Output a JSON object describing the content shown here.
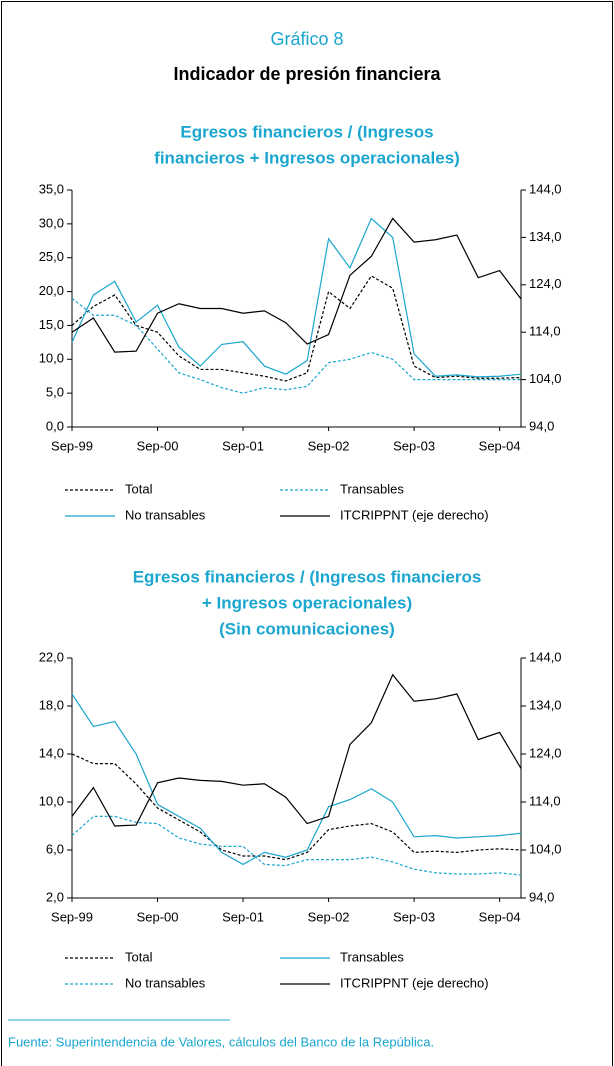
{
  "header": {
    "number": "Gráfico 8",
    "title": "Indicador de presión financiera"
  },
  "source": "Fuente: Superintendencia de Valores, cálculos del Banco de la República.",
  "chart_data": [
    {
      "type": "line",
      "title": [
        "Egresos financieros / (Ingresos",
        "financieros + Ingresos operacionales)"
      ],
      "categories": [
        "Sep-99",
        null,
        null,
        null,
        "Sep-00",
        null,
        null,
        null,
        "Sep-01",
        null,
        null,
        null,
        "Sep-02",
        null,
        null,
        null,
        "Sep-03",
        null,
        null,
        null,
        "Sep-04",
        null
      ],
      "ylim": [
        0,
        35
      ],
      "yticks": [
        {
          "value": 0,
          "label": "0,0"
        },
        {
          "value": 5,
          "label": "5,0"
        },
        {
          "value": 10,
          "label": "10,0"
        },
        {
          "value": 15,
          "label": "15,0"
        },
        {
          "value": 20,
          "label": "20,0"
        },
        {
          "value": 25,
          "label": "25,0"
        },
        {
          "value": 30,
          "label": "30,0"
        },
        {
          "value": 35,
          "label": "35,0"
        }
      ],
      "y2lim": [
        94,
        144
      ],
      "y2ticks": [
        {
          "value": 94,
          "label": "94,0"
        },
        {
          "value": 104,
          "label": "104,0"
        },
        {
          "value": 114,
          "label": "114,0"
        },
        {
          "value": 124,
          "label": "124,0"
        },
        {
          "value": 134,
          "label": "134,0"
        },
        {
          "value": 144,
          "label": "144,0"
        }
      ],
      "series": [
        {
          "name": "Total",
          "color": "#000000",
          "dashed": true,
          "values": [
            15.0,
            17.8,
            19.5,
            15.0,
            14.0,
            10.5,
            8.5,
            8.5,
            8.0,
            7.5,
            6.8,
            8.0,
            20.0,
            17.5,
            22.3,
            20.5,
            9.0,
            7.3,
            7.5,
            7.2,
            7.2,
            7.3
          ]
        },
        {
          "name": "Transables",
          "color": "#1aa6cf",
          "dashed": true,
          "values": [
            19.0,
            16.5,
            16.5,
            15.0,
            11.5,
            8.0,
            7.0,
            5.8,
            5.0,
            5.8,
            5.5,
            6.0,
            9.5,
            10.0,
            11.0,
            10.0,
            7.0,
            7.0,
            7.0,
            7.0,
            7.0,
            7.0
          ]
        },
        {
          "name": "No transables",
          "color": "#1aa6cf",
          "dashed": false,
          "values": [
            12.5,
            19.5,
            21.5,
            15.5,
            18.0,
            11.8,
            9.0,
            12.2,
            12.6,
            9.0,
            7.8,
            9.8,
            27.8,
            23.5,
            30.8,
            28.0,
            10.8,
            7.5,
            7.7,
            7.4,
            7.5,
            7.8
          ]
        },
        {
          "name": "ITCRIPPNT (eje derecho)",
          "color": "#000000",
          "dashed": false,
          "axis": "y2",
          "values": [
            114,
            117,
            109.8,
            110,
            118,
            120,
            119,
            119,
            118,
            118.5,
            116,
            111.5,
            113.5,
            126,
            130,
            138,
            133,
            133.5,
            134.5,
            125.5,
            127,
            121
          ]
        }
      ]
    },
    {
      "type": "line",
      "title": [
        "Egresos financieros / (Ingresos financieros",
        "+ Ingresos operacionales)",
        "(Sin comunicaciones)"
      ],
      "categories": [
        "Sep-99",
        null,
        null,
        null,
        "Sep-00",
        null,
        null,
        null,
        "Sep-01",
        null,
        null,
        null,
        "Sep-02",
        null,
        null,
        null,
        "Sep-03",
        null,
        null,
        null,
        "Sep-04",
        null
      ],
      "ylim": [
        2,
        22
      ],
      "yticks": [
        {
          "value": 2,
          "label": "2,0"
        },
        {
          "value": 6,
          "label": "6,0"
        },
        {
          "value": 10,
          "label": "10,0"
        },
        {
          "value": 14,
          "label": "14,0"
        },
        {
          "value": 18,
          "label": "18,0"
        },
        {
          "value": 22,
          "label": "22,0"
        }
      ],
      "y2lim": [
        94,
        144
      ],
      "y2ticks": [
        {
          "value": 94,
          "label": "94,0"
        },
        {
          "value": 104,
          "label": "104,0"
        },
        {
          "value": 114,
          "label": "114,0"
        },
        {
          "value": 124,
          "label": "124,0"
        },
        {
          "value": 134,
          "label": "134,0"
        },
        {
          "value": 144,
          "label": "144,0"
        }
      ],
      "series": [
        {
          "name": "Total",
          "color": "#000000",
          "dashed": true,
          "values": [
            14.0,
            13.2,
            13.2,
            11.5,
            9.5,
            8.5,
            7.5,
            6.0,
            5.5,
            5.5,
            5.2,
            5.8,
            7.7,
            8.0,
            8.2,
            7.5,
            5.8,
            5.9,
            5.8,
            6.0,
            6.1,
            6.0
          ]
        },
        {
          "name": "Transables",
          "color": "#1aa6cf",
          "dashed": false,
          "values": [
            19.0,
            16.3,
            16.7,
            14.0,
            9.8,
            8.8,
            7.8,
            5.8,
            4.8,
            5.8,
            5.4,
            6.0,
            9.6,
            10.2,
            11.1,
            10.0,
            7.1,
            7.2,
            7.0,
            7.1,
            7.2,
            7.4
          ]
        },
        {
          "name": "No transables",
          "color": "#1aa6cf",
          "dashed": true,
          "values": [
            7.2,
            8.8,
            8.8,
            8.3,
            8.2,
            7.0,
            6.5,
            6.3,
            6.3,
            4.8,
            4.7,
            5.2,
            5.2,
            5.2,
            5.4,
            5.0,
            4.4,
            4.1,
            4.0,
            4.0,
            4.1,
            3.9
          ]
        },
        {
          "name": "ITCRIPPNT (eje derecho)",
          "color": "#000000",
          "dashed": false,
          "axis": "y2",
          "values": [
            111,
            117,
            109,
            109.2,
            118,
            119,
            118.5,
            118.3,
            117.5,
            117.8,
            115,
            109.5,
            111,
            126,
            130.5,
            140.5,
            135,
            135.5,
            136.5,
            127,
            128.5,
            121
          ]
        }
      ]
    }
  ]
}
